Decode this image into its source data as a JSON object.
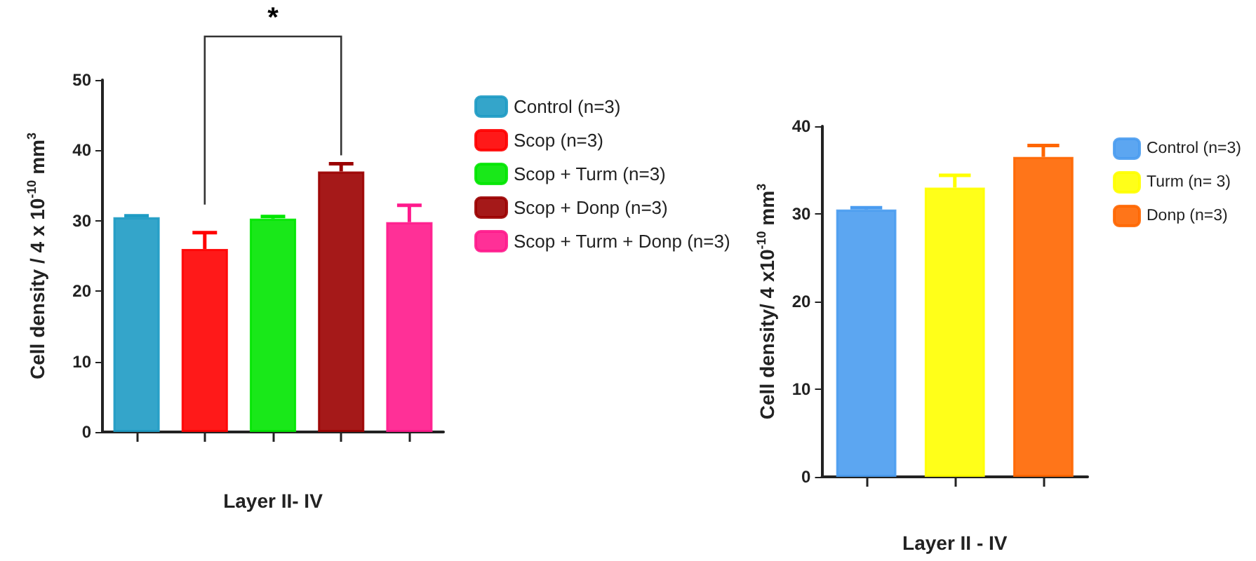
{
  "chart_data": [
    {
      "type": "bar",
      "ylabel": "Cell density / 4 x 10$^{-10}$ mm$^{3}$",
      "xlabel": "Layer II- IV",
      "categories": [
        null,
        null,
        null,
        null,
        null
      ],
      "series": [
        {
          "name": "Control (n=3)",
          "color": "#1e9bc4",
          "values": [
            30.5,
            null,
            null,
            null,
            null
          ],
          "errors": [
            [
              30.5,
              30.7
            ],
            null,
            null,
            null,
            null
          ]
        },
        {
          "name": "Scop (n=3)",
          "color": "#ff0000",
          "values": [
            null,
            26,
            null,
            null,
            null
          ],
          "errors": [
            null,
            [
              26,
              28.3
            ],
            null,
            null,
            null
          ]
        },
        {
          "name": "Scop + Turm (n=3)",
          "color": "#00e600",
          "values": [
            null,
            null,
            30.3,
            null,
            null
          ],
          "errors": [
            null,
            null,
            [
              30.3,
              30.6
            ],
            null,
            null
          ]
        },
        {
          "name": "Scop + Donp (n=3)",
          "color": "#9b0000",
          "values": [
            null,
            null,
            null,
            37,
            null
          ],
          "errors": [
            null,
            null,
            null,
            [
              37,
              38.1
            ],
            null
          ]
        },
        {
          "name": "Scop + Turm + Donp (n=3)",
          "color": "#ff1a8c",
          "values": [
            null,
            null,
            null,
            null,
            29.8
          ],
          "errors": [
            null,
            null,
            null,
            null,
            [
              29.8,
              32.2
            ]
          ]
        }
      ],
      "ylim": [
        0,
        50
      ],
      "yticks": [
        0,
        10,
        20,
        30,
        40,
        50
      ],
      "grid": false,
      "legend": "right",
      "annotations": [
        "*"
      ]
    },
    {
      "type": "bar",
      "ylabel": "Cell density/ 4 x10$^{-10}$ mm$^{3}$",
      "xlabel": "Layer II - IV",
      "categories": [
        null,
        null,
        null
      ],
      "series": [
        {
          "name": "Control (n=3)",
          "color": "#4a9cf0",
          "values": [
            30.5,
            null,
            null
          ],
          "errors": [
            [
              30.5,
              30.7
            ],
            null,
            null
          ]
        },
        {
          "name": "Turm (n= 3)",
          "color": "#ffff00",
          "values": [
            null,
            33,
            null
          ],
          "errors": [
            null,
            [
              33,
              34.4
            ],
            null
          ]
        },
        {
          "name": "Donp (n=3)",
          "color": "#ff6600",
          "values": [
            null,
            null,
            36.5
          ],
          "errors": [
            null,
            null,
            [
              36.5,
              37.8
            ]
          ]
        }
      ],
      "ylim": [
        0,
        40
      ],
      "yticks": [
        0,
        10,
        20,
        30,
        40
      ],
      "grid": false,
      "legend": "right"
    }
  ]
}
